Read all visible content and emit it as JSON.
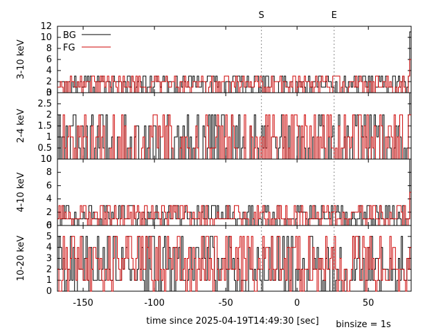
{
  "chart_data": {
    "type": "line",
    "style": "step",
    "xlabel": "time since 2025-04-19T14:49:30 [sec]",
    "note": "binsize = 1s",
    "xlim": [
      -168,
      80
    ],
    "xticks": [
      -150,
      -100,
      -50,
      0,
      50
    ],
    "markers": [
      {
        "label": "S",
        "x": -25
      },
      {
        "label": "E",
        "x": 26
      }
    ],
    "legend": {
      "placement": "top-left",
      "entries": [
        {
          "name": "BG",
          "color": "#000000"
        },
        {
          "name": "FG",
          "color": "#cc0000"
        }
      ]
    },
    "panels": [
      {
        "ylabel": "3-10 keV",
        "ylim": [
          0,
          12
        ],
        "yticks": [
          0,
          2,
          4,
          6,
          8,
          10,
          12
        ],
        "seed": 11,
        "levels": [
          0,
          1,
          2,
          3
        ],
        "series": [
          {
            "name": "BG",
            "color": "#000000",
            "end_spike": 11
          },
          {
            "name": "FG",
            "color": "#cc0000",
            "end_spike": 6
          }
        ]
      },
      {
        "ylabel": "2-4 keV",
        "ylim": [
          0,
          3
        ],
        "yticks": [
          0,
          0.5,
          1,
          1.5,
          2,
          2.5,
          3
        ],
        "seed": 23,
        "levels": [
          0,
          0,
          0,
          0.5,
          1,
          1.5,
          2
        ],
        "series": [
          {
            "name": "BG",
            "color": "#000000",
            "end_spike": 3
          },
          {
            "name": "FG",
            "color": "#cc0000",
            "end_spike": 2
          }
        ]
      },
      {
        "ylabel": "4-10 keV",
        "ylim": [
          0,
          10
        ],
        "yticks": [
          0,
          2,
          4,
          6,
          8,
          10
        ],
        "seed": 37,
        "levels": [
          0,
          1,
          1,
          2,
          3
        ],
        "series": [
          {
            "name": "BG",
            "color": "#000000",
            "end_spike": 10
          },
          {
            "name": "FG",
            "color": "#cc0000",
            "end_spike": 5
          }
        ]
      },
      {
        "ylabel": "10-20 keV",
        "ylim": [
          0,
          6
        ],
        "yticks": [
          0,
          1,
          2,
          3,
          4,
          5,
          6
        ],
        "seed": 53,
        "levels": [
          0,
          1,
          1,
          2,
          2,
          3,
          4,
          5
        ],
        "series": [
          {
            "name": "BG",
            "color": "#000000",
            "end_spike": 4
          },
          {
            "name": "FG",
            "color": "#cc0000",
            "end_spike": 4
          }
        ]
      }
    ]
  }
}
